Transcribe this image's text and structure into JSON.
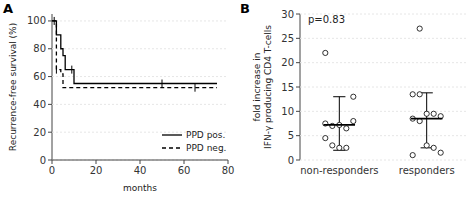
{
  "chart_data": [
    {
      "type": "step",
      "label": "A",
      "xlabel": "months",
      "ylabel": "Recurrence-free survival (%)",
      "xlim": [
        0,
        80
      ],
      "ylim": [
        0,
        105
      ],
      "xticks": [
        0,
        20,
        40,
        60,
        80
      ],
      "yticks": [
        0,
        20,
        40,
        60,
        80,
        100
      ],
      "legend": "lower right",
      "series": [
        {
          "name": "PPD pos.",
          "color": "#000000",
          "line_style": "solid",
          "x": [
            0,
            1,
            2,
            3,
            4,
            5,
            6,
            7,
            9,
            10,
            13,
            21,
            22,
            50,
            55,
            75
          ],
          "values": [
            100,
            100,
            90,
            90,
            80,
            75,
            65,
            65,
            65,
            55,
            55,
            55,
            55,
            55,
            55,
            55
          ],
          "censor_x": [
            1,
            9,
            50
          ],
          "censor_values": [
            100,
            65,
            55
          ]
        },
        {
          "name": "PPD neg.",
          "color": "#000000",
          "line_style": "dashed",
          "x": [
            0,
            2,
            4,
            5,
            6,
            65,
            75
          ],
          "values": [
            100,
            65,
            62,
            52,
            52,
            52,
            52
          ],
          "censor_x": [
            2,
            65
          ],
          "censor_values": [
            65,
            52
          ]
        }
      ]
    },
    {
      "type": "strip",
      "label": "B",
      "ylabel": "fold increase in\nIFN-γ producing CD4 T-cells",
      "ylim": [
        0,
        30
      ],
      "yticks": [
        0,
        5,
        10,
        15,
        20,
        25,
        30
      ],
      "categories": [
        "non-responders",
        "responders"
      ],
      "annotation": "p=0.83",
      "color": "#000000",
      "marker": "open-circle",
      "values": [
        [
          7.5,
          7.0,
          7.2,
          6.5,
          8.0,
          4.5,
          3.0,
          2.5,
          2.5,
          13.0,
          22.0
        ],
        [
          13.5,
          13.5,
          9.5,
          9.5,
          9.0,
          8.5,
          8.0,
          3.0,
          2.5,
          1.5,
          1.0,
          27.0
        ]
      ],
      "mean": [
        7.2,
        8.5
      ],
      "sd_upper": [
        13.0,
        13.8
      ],
      "sd_lower": [
        2.0,
        2.5
      ]
    }
  ]
}
